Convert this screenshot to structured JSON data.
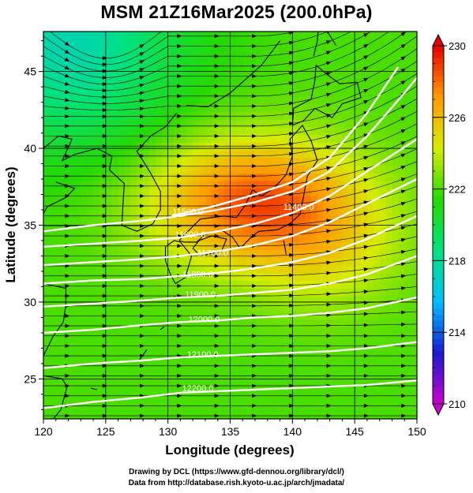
{
  "title": "MSM 21Z16Mar2025 (200.0hPa)",
  "credits": {
    "line1": "Drawing by DCL (https://www.gfd-dennou.org/library/dcl/)",
    "line2": "Data from http://database.rish.kyoto-u.ac.jp/arch/jmadata/"
  },
  "chart_data": {
    "type": "heatmap",
    "title": "MSM 21Z16Mar2025 (200.0hPa)",
    "xlabel": "Longitude (degrees)",
    "ylabel": "Latitude  (degrees)",
    "xlim": [
      120,
      150
    ],
    "ylim": [
      22.4,
      47.6
    ],
    "xticks": [
      120,
      125,
      130,
      135,
      140,
      145,
      150
    ],
    "yticks": [
      25,
      30,
      35,
      40,
      45
    ],
    "grid": true,
    "colorbar": {
      "min": 210,
      "max": 230,
      "ticks": [
        210,
        214,
        218,
        222,
        226,
        230
      ],
      "colors": [
        "#cc00cc",
        "#1a1ad0",
        "#00bfff",
        "#00e27e",
        "#26d900",
        "#d6ec00",
        "#ff9a00",
        "#e80000"
      ]
    },
    "temperature_field": {
      "base": 222,
      "maximum": {
        "lon": 137,
        "lat": 36.5,
        "value": 228.5
      },
      "cold_corner": {
        "lon": 122,
        "lat": 47,
        "value": 217.5
      }
    },
    "contour_labels": [
      {
        "text": "11500.0",
        "lon": 131.6,
        "lat": 35.7
      },
      {
        "text": "11600.0",
        "lon": 131.8,
        "lat": 34.2
      },
      {
        "text": "11700.0",
        "lon": 133.6,
        "lat": 33.0
      },
      {
        "text": "11800.0",
        "lon": 132.4,
        "lat": 31.6
      },
      {
        "text": "11900.0",
        "lon": 132.6,
        "lat": 30.3
      },
      {
        "text": "12000.0",
        "lon": 132.9,
        "lat": 28.7
      },
      {
        "text": "12100.0",
        "lon": 132.8,
        "lat": 26.4
      },
      {
        "text": "12200.0",
        "lon": 132.4,
        "lat": 24.2
      },
      {
        "text": "11400.0",
        "lon": 140.5,
        "lat": 36.0
      }
    ],
    "height_contours": [
      {
        "value": 11400,
        "points": [
          [
            130.3,
            35.6
          ],
          [
            134,
            36.3
          ],
          [
            137,
            37.0
          ],
          [
            140,
            37.8
          ],
          [
            143,
            39.4
          ],
          [
            146,
            42.3
          ],
          [
            148.5,
            45.3
          ]
        ]
      },
      {
        "value": 11500,
        "points": [
          [
            120,
            34.6
          ],
          [
            124,
            35.0
          ],
          [
            128,
            35.3
          ],
          [
            131,
            35.6
          ],
          [
            134,
            36.0
          ],
          [
            137,
            36.5
          ],
          [
            140,
            37.2
          ],
          [
            143,
            38.5
          ],
          [
            146,
            40.8
          ],
          [
            149,
            43.6
          ],
          [
            150,
            44.6
          ]
        ]
      },
      {
        "value": 11600,
        "points": [
          [
            120,
            33.6
          ],
          [
            124,
            33.8
          ],
          [
            128,
            34.0
          ],
          [
            131,
            34.2
          ],
          [
            134,
            34.6
          ],
          [
            137,
            35.1
          ],
          [
            140,
            35.8
          ],
          [
            143,
            36.9
          ],
          [
            146,
            38.5
          ],
          [
            150,
            40.6
          ]
        ]
      },
      {
        "value": 11700,
        "points": [
          [
            120,
            32.4
          ],
          [
            124,
            32.6
          ],
          [
            128,
            32.8
          ],
          [
            131,
            33.0
          ],
          [
            134,
            33.3
          ],
          [
            137,
            33.7
          ],
          [
            140,
            34.3
          ],
          [
            143,
            35.2
          ],
          [
            146,
            36.4
          ],
          [
            150,
            38.0
          ]
        ]
      },
      {
        "value": 11800,
        "points": [
          [
            120,
            31.2
          ],
          [
            124,
            31.4
          ],
          [
            128,
            31.5
          ],
          [
            131,
            31.7
          ],
          [
            134,
            31.9
          ],
          [
            137,
            32.2
          ],
          [
            140,
            32.6
          ],
          [
            143,
            33.2
          ],
          [
            146,
            34.1
          ],
          [
            150,
            35.6
          ]
        ]
      },
      {
        "value": 11900,
        "points": [
          [
            120,
            29.7
          ],
          [
            124,
            29.9
          ],
          [
            128,
            30.1
          ],
          [
            131,
            30.3
          ],
          [
            134,
            30.4
          ],
          [
            137,
            30.6
          ],
          [
            140,
            30.8
          ],
          [
            143,
            31.2
          ],
          [
            146,
            31.8
          ],
          [
            150,
            33.0
          ]
        ]
      },
      {
        "value": 12000,
        "points": [
          [
            120,
            28.0
          ],
          [
            124,
            28.2
          ],
          [
            128,
            28.5
          ],
          [
            131,
            28.7
          ],
          [
            134,
            28.8
          ],
          [
            137,
            29.0
          ],
          [
            140,
            29.1
          ],
          [
            143,
            29.3
          ],
          [
            146,
            29.6
          ],
          [
            150,
            30.3
          ]
        ]
      },
      {
        "value": 12100,
        "points": [
          [
            120,
            25.7
          ],
          [
            124,
            26.0
          ],
          [
            128,
            26.2
          ],
          [
            131,
            26.4
          ],
          [
            134,
            26.5
          ],
          [
            137,
            26.6
          ],
          [
            140,
            26.7
          ],
          [
            143,
            26.8
          ],
          [
            146,
            27.0
          ],
          [
            150,
            27.4
          ]
        ]
      },
      {
        "value": 12200,
        "points": [
          [
            120,
            23.1
          ],
          [
            124,
            23.5
          ],
          [
            128,
            23.8
          ],
          [
            131,
            24.1
          ],
          [
            134,
            24.2
          ],
          [
            137,
            24.3
          ],
          [
            140,
            24.4
          ],
          [
            143,
            24.5
          ],
          [
            146,
            24.6
          ],
          [
            150,
            24.9
          ]
        ]
      }
    ]
  }
}
